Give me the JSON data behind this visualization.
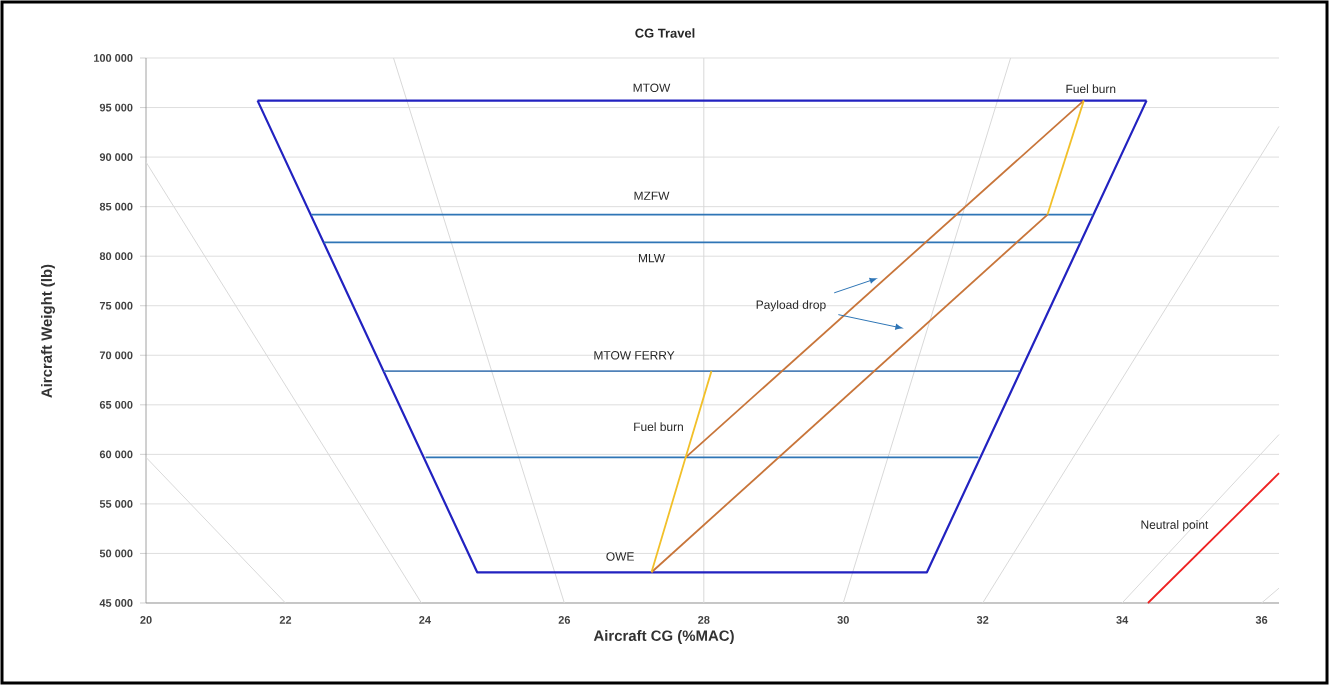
{
  "chart_data": {
    "type": "line",
    "title": "CG Travel",
    "xlabel": "Aircraft CG (%MAC)",
    "ylabel": "Aircraft Weight (lb)",
    "xlim": [
      20,
      36.25
    ],
    "ylim": [
      45000,
      100000
    ],
    "xticks": [
      20,
      22,
      24,
      26,
      28,
      30,
      32,
      34,
      36
    ],
    "yticks": [
      {
        "value": 45000,
        "label": "45 000"
      },
      {
        "value": 50000,
        "label": "50 000"
      },
      {
        "value": 55000,
        "label": "55 000"
      },
      {
        "value": 60000,
        "label": "60 000"
      },
      {
        "value": 65000,
        "label": "65 000"
      },
      {
        "value": 70000,
        "label": "70 000"
      },
      {
        "value": 75000,
        "label": "75 000"
      },
      {
        "value": 80000,
        "label": "80 000"
      },
      {
        "value": 85000,
        "label": "85 000"
      },
      {
        "value": 90000,
        "label": "90 000"
      },
      {
        "value": 95000,
        "label": "95 000"
      },
      {
        "value": 100000,
        "label": "100 000"
      }
    ],
    "grid": "y",
    "marker": "none",
    "line_style": "solid",
    "series": [
      {
        "color": "#d9d9d9",
        "x": [
          20,
          23.95
        ],
        "values": [
          89500,
          45000
        ]
      },
      {
        "color": "#d9d9d9",
        "x": [
          20,
          22
        ],
        "values": [
          59700,
          45000
        ]
      },
      {
        "color": "#d9d9d9",
        "x": [
          23.55,
          26
        ],
        "values": [
          100000,
          45000
        ]
      },
      {
        "color": "#d9d9d9",
        "x": [
          28,
          28
        ],
        "values": [
          100000,
          45000
        ]
      },
      {
        "color": "#d9d9d9",
        "x": [
          32.4,
          30
        ],
        "values": [
          100000,
          45000
        ]
      },
      {
        "color": "#d9d9d9",
        "x": [
          32,
          36.25
        ],
        "values": [
          45000,
          93100
        ]
      },
      {
        "color": "#d9d9d9",
        "x": [
          34,
          36.25
        ],
        "values": [
          45000,
          62000
        ]
      },
      {
        "color": "#d9d9d9",
        "x": [
          36,
          36.25
        ],
        "values": [
          45000,
          46500
        ]
      },
      {
        "color": "#2222c0",
        "x": [
          21.6,
          34.35
        ],
        "values": [
          95700,
          95700
        ]
      },
      {
        "color": "#2222c0",
        "x": [
          21.6,
          24.75,
          31.2,
          34.35
        ],
        "values": [
          95700,
          48100,
          48100,
          95700
        ]
      },
      {
        "color": "#2e75b6",
        "x": [
          22.37,
          33.58
        ],
        "values": [
          84200,
          84200
        ]
      },
      {
        "color": "#2e75b6",
        "x": [
          22.55,
          33.4
        ],
        "values": [
          81400,
          81400
        ]
      },
      {
        "color": "#4f81b8",
        "x": [
          23.41,
          32.53
        ],
        "values": [
          68400,
          68400
        ]
      },
      {
        "color": "#2e75b6",
        "x": [
          24.01,
          31.94
        ],
        "values": [
          59700,
          59700
        ]
      },
      {
        "color": "#c8753a",
        "x": [
          27.74,
          33.45
        ],
        "values": [
          59700,
          95700
        ]
      },
      {
        "color": "#c8753a",
        "x": [
          27.25,
          32.93
        ],
        "values": [
          48100,
          84200
        ]
      },
      {
        "color": "#f2c029",
        "x": [
          27.25,
          27.74,
          28.11
        ],
        "values": [
          48100,
          59700,
          68400
        ]
      },
      {
        "color": "#f2c029",
        "x": [
          32.93,
          33.45
        ],
        "values": [
          84200,
          95700
        ]
      },
      {
        "color": "#ee2222",
        "x": [
          34.37,
          36.25
        ],
        "values": [
          45000,
          58100
        ]
      }
    ],
    "annotations": [
      "MTOW",
      "MZFW",
      "MLW",
      "MTOW FERRY",
      "Fuel burn",
      "OWE",
      "Fuel burn",
      "Payload drop",
      "Neutral point"
    ]
  }
}
